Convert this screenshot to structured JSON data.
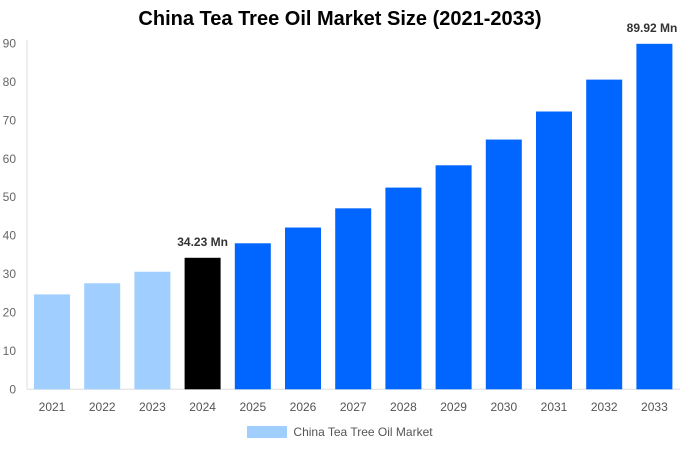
{
  "chart_data": {
    "type": "bar",
    "title": "China Tea Tree Oil Market Size (2021-2033)",
    "categories": [
      "2021",
      "2022",
      "2023",
      "2024",
      "2025",
      "2026",
      "2027",
      "2028",
      "2029",
      "2030",
      "2031",
      "2032",
      "2033"
    ],
    "series": [
      {
        "name": "China Tea Tree Oil Market",
        "values": [
          24.7,
          27.6,
          30.6,
          34.23,
          38.0,
          42.1,
          47.1,
          52.5,
          58.3,
          65.0,
          72.3,
          80.6,
          89.92
        ]
      }
    ],
    "data_labels": {
      "3": "34.23 Mn",
      "12": "89.92 Mn"
    },
    "ylim": [
      0,
      90
    ],
    "yticks": [
      0,
      10,
      20,
      30,
      40,
      50,
      60,
      70,
      80,
      90
    ],
    "grid": false,
    "legend": "bottom",
    "colors": {
      "historical": "#a0cfff",
      "current": "#000000",
      "forecast": "#0066ff"
    }
  }
}
